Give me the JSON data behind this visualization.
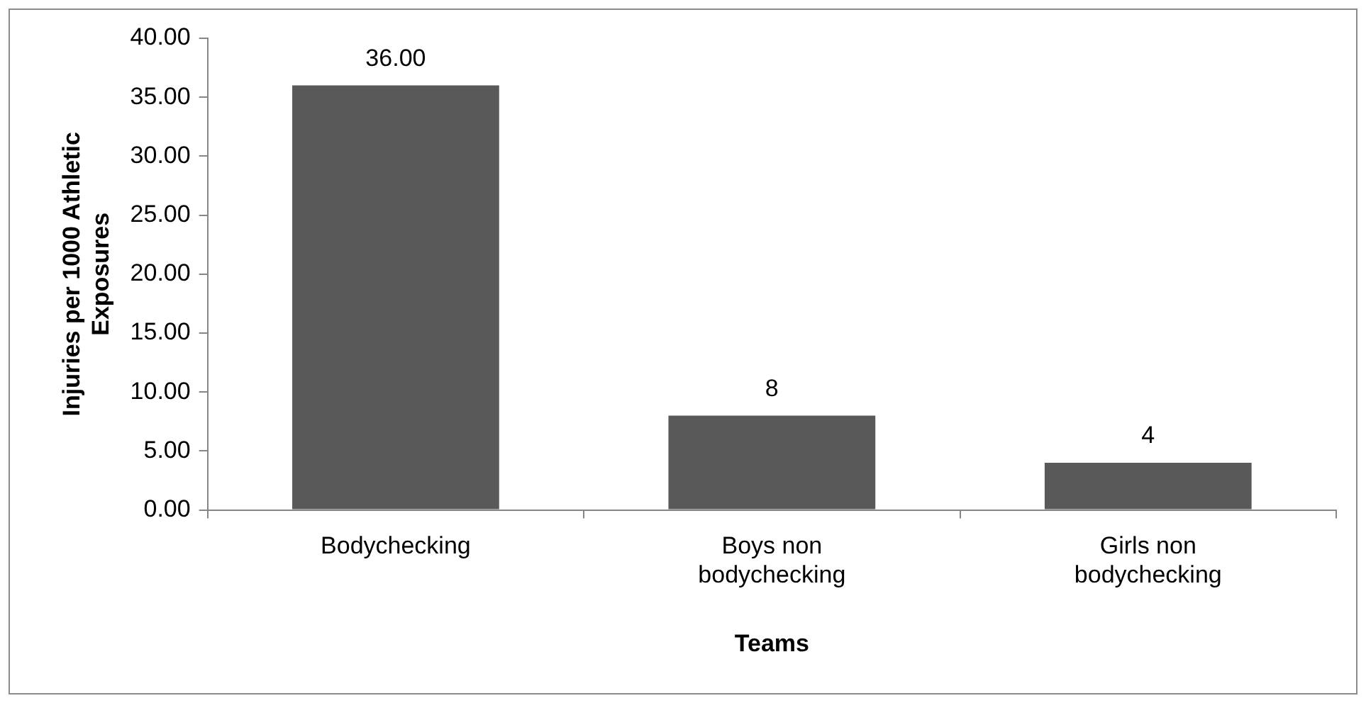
{
  "chart_data": {
    "type": "bar",
    "xlabel": "Teams",
    "ylabel": "Injuries per 1000 Athletic Exposures",
    "categories": [
      "Bodychecking",
      "Boys non bodychecking",
      "Girls non bodychecking"
    ],
    "values": [
      36,
      8,
      4
    ],
    "color": "#595959",
    "value_labels": [
      "36.00",
      "8",
      "4"
    ],
    "ylim": [
      0,
      40
    ],
    "yticks": [
      {
        "value": 0,
        "label": "0.00"
      },
      {
        "value": 5,
        "label": "5.00"
      },
      {
        "value": 10,
        "label": "10.00"
      },
      {
        "value": 15,
        "label": "15.00"
      },
      {
        "value": 20,
        "label": "20.00"
      },
      {
        "value": 25,
        "label": "25.00"
      },
      {
        "value": 30,
        "label": "30.00"
      },
      {
        "value": 35,
        "label": "35.00"
      },
      {
        "value": 40,
        "label": "40.00"
      }
    ],
    "grid": false,
    "legend": false
  }
}
